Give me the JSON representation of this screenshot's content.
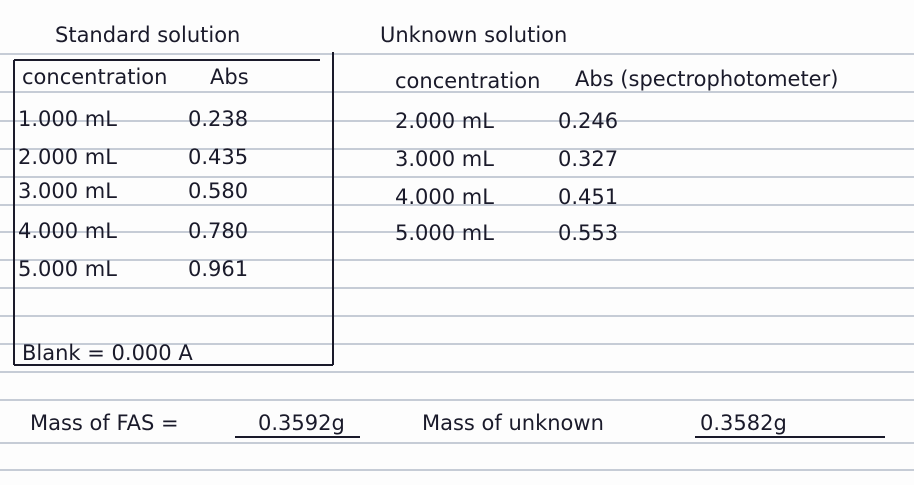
{
  "standard": {
    "title": "Standard solution",
    "headers": [
      "concentration",
      "Abs"
    ],
    "rows": [
      [
        "1.000 mL",
        "0.238"
      ],
      [
        "2.000 mL",
        "0.435"
      ],
      [
        "3.000 mL",
        "0.580"
      ],
      [
        "4.000 mL",
        "0.780"
      ],
      [
        "5.000 mL",
        "0.961"
      ]
    ],
    "blank": "Blank = 0.000 A"
  },
  "unknown": {
    "title": "Unknown solution",
    "headers": [
      "concentration",
      "Abs (spectrophotometer)"
    ],
    "rows": [
      [
        "2.000 mL",
        "0.246"
      ],
      [
        "3.000 mL",
        "0.327"
      ],
      [
        "4.000 mL",
        "0.451"
      ],
      [
        "5.000 mL",
        "0.553"
      ]
    ]
  },
  "masses": {
    "fas_label": "Mass of FAS =",
    "fas_value": "0.3592g",
    "unknown_label": "Mass of unknown",
    "unknown_value": "0.3582g"
  }
}
